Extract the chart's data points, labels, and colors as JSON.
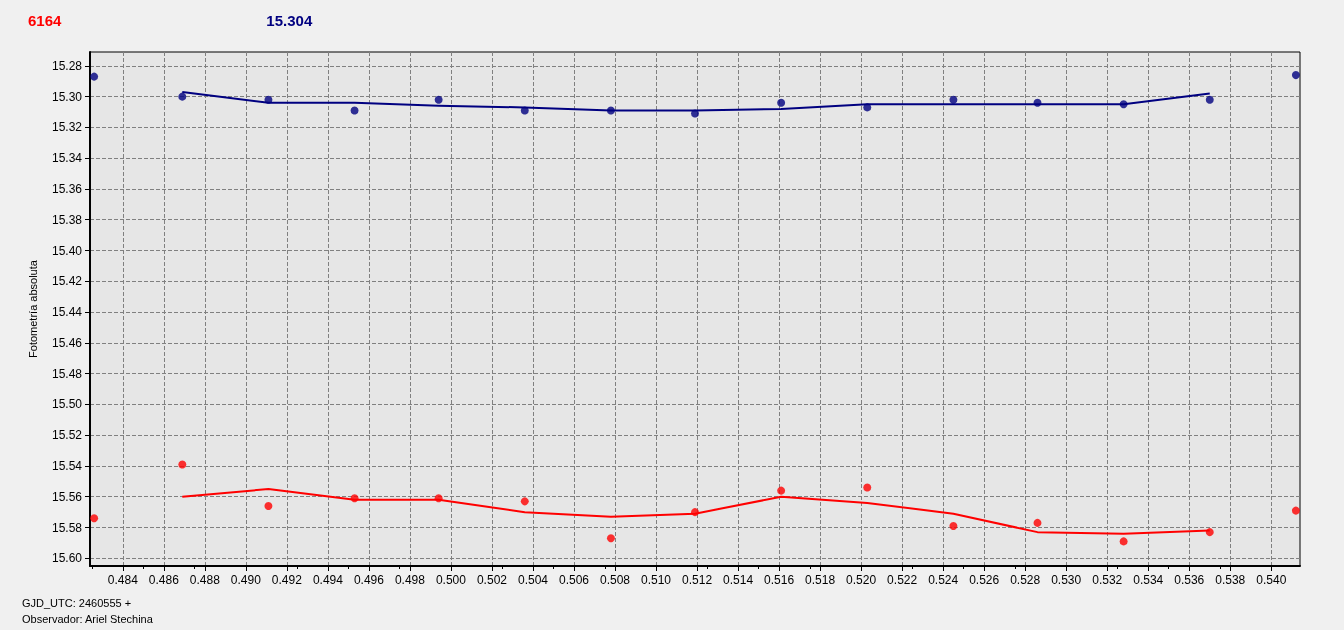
{
  "chart_data": {
    "type": "scatter",
    "ylabel": "Fotometría absoluta",
    "xlabel": "GJD_UTC: 2460555 +",
    "annotations": [
      "Observador: Ariel Stechina"
    ],
    "x": [
      0.4826,
      0.4869,
      0.4911,
      0.4953,
      0.4994,
      0.5036,
      0.5078,
      0.5119,
      0.5161,
      0.5203,
      0.5245,
      0.5286,
      0.5328,
      0.537,
      0.5412
    ],
    "series": [
      {
        "name": "6164",
        "color": "#ff0000",
        "values": [
          15.574,
          15.539,
          15.566,
          15.561,
          15.561,
          15.563,
          15.587,
          15.57,
          15.556,
          15.554,
          15.579,
          15.577,
          15.589,
          15.583,
          15.569
        ]
      },
      {
        "name": "15.304",
        "color": "#000080",
        "values": [
          15.287,
          15.3,
          15.302,
          15.309,
          15.302,
          15.309,
          15.309,
          15.311,
          15.304,
          15.307,
          15.302,
          15.304,
          15.305,
          15.302,
          15.286
        ]
      },
      {
        "type": "line",
        "color": "#ff0000",
        "marker": "none",
        "x": [
          0.4869,
          0.4911,
          0.4953,
          0.4994,
          0.5036,
          0.5078,
          0.5119,
          0.5161,
          0.5203,
          0.5245,
          0.5286,
          0.5328,
          0.537
        ],
        "values": [
          15.56,
          15.555,
          15.562,
          15.562,
          15.57,
          15.573,
          15.571,
          15.56,
          15.564,
          15.571,
          15.583,
          15.584,
          15.582
        ]
      },
      {
        "type": "line",
        "color": "#000080",
        "marker": "none",
        "x": [
          0.4869,
          0.4911,
          0.4953,
          0.4994,
          0.5036,
          0.5078,
          0.5119,
          0.5161,
          0.5203,
          0.5245,
          0.5286,
          0.5328,
          0.537
        ],
        "values": [
          15.297,
          15.304,
          15.304,
          15.306,
          15.307,
          15.309,
          15.309,
          15.308,
          15.305,
          15.305,
          15.305,
          15.305,
          15.298
        ]
      }
    ],
    "marker": "circle",
    "grid": true,
    "legend": "top left",
    "xlim": [
      0.4824,
      0.5414
    ],
    "xticks": [
      0.484,
      0.486,
      0.488,
      {
        "value": 0.49,
        "label": "0.490"
      },
      0.492,
      0.494,
      0.496,
      0.498,
      {
        "value": 0.5,
        "label": "0.500"
      },
      0.502,
      0.504,
      0.506,
      0.508,
      {
        "value": 0.51,
        "label": "0.510"
      },
      0.512,
      0.514,
      0.516,
      0.518,
      {
        "value": 0.52,
        "label": "0.520"
      },
      0.522,
      0.524,
      0.526,
      0.528,
      {
        "value": 0.53,
        "label": "0.530"
      },
      0.532,
      0.534,
      0.536,
      0.538,
      {
        "value": 0.54,
        "label": "0.540"
      }
    ],
    "ylim": [
      15.605,
      15.271
    ],
    "yticks": [
      15.28,
      {
        "value": 15.3,
        "label": "15.30"
      },
      15.32,
      15.34,
      15.36,
      15.38,
      {
        "value": 15.4,
        "label": "15.40"
      },
      15.42,
      15.44,
      15.46,
      15.48,
      {
        "value": 15.5,
        "label": "15.50"
      },
      15.52,
      15.54,
      15.56,
      15.58,
      {
        "value": 15.6,
        "label": "15.60"
      }
    ]
  }
}
